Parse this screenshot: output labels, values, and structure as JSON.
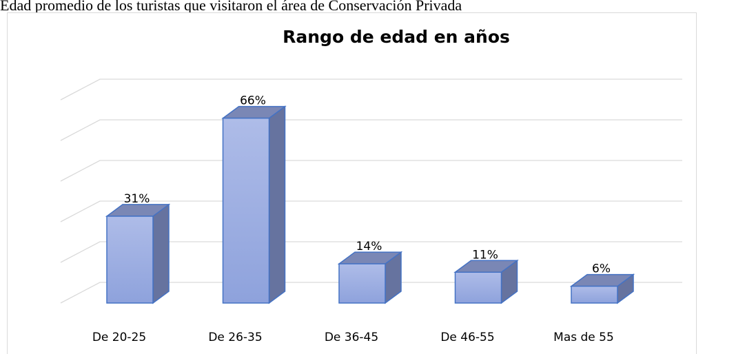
{
  "caption": "Edad promedio de los turistas que visitaron el área de Conservación Privada",
  "chart_data": {
    "type": "bar3d",
    "title": "Rango de edad en años",
    "categories": [
      "De 20-25",
      "De 26-35",
      "De 36-45",
      "De 46-55",
      "Mas de 55"
    ],
    "values": [
      31,
      66,
      14,
      11,
      6
    ],
    "value_labels": [
      "31%",
      "66%",
      "14%",
      "11%",
      "6%"
    ],
    "color": "#9aaee2",
    "ylim": [
      0,
      75
    ],
    "yticks": [
      0,
      15,
      30,
      45,
      60,
      75
    ],
    "grid": true
  }
}
